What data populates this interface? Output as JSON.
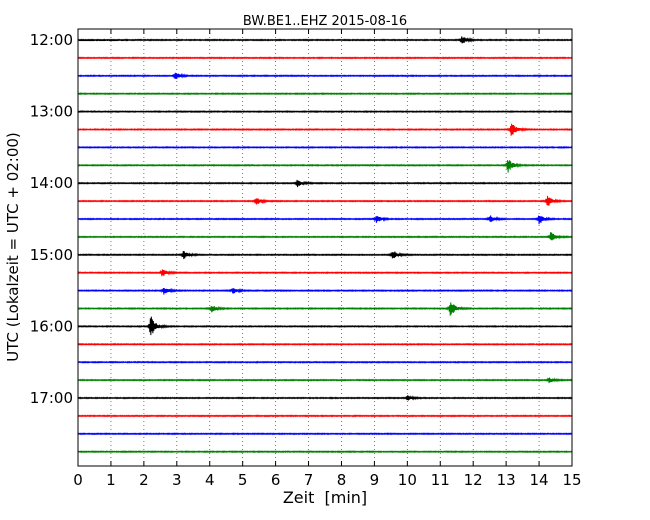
{
  "chart_data": {
    "type": "line",
    "title": "BW.BE1..EHZ 2015-08-16",
    "xlabel": "Zeit  [min]",
    "ylabel": "UTC (Lokalzeit = UTC + 02:00)",
    "xlim": [
      0,
      15
    ],
    "x_ticks": [
      "0",
      "1",
      "2",
      "3",
      "4",
      "5",
      "6",
      "7",
      "8",
      "9",
      "10",
      "11",
      "12",
      "13",
      "14",
      "15"
    ],
    "y_ticks": [
      {
        "label": "12:00",
        "trace": 0
      },
      {
        "label": "13:00",
        "trace": 4
      },
      {
        "label": "14:00",
        "trace": 8
      },
      {
        "label": "15:00",
        "trace": 12
      },
      {
        "label": "16:00",
        "trace": 16
      },
      {
        "label": "17:00",
        "trace": 20
      }
    ],
    "grid": "vertical dotted",
    "trace_interval_min": 15,
    "colors": [
      "#000000",
      "#ff0000",
      "#0000ff",
      "#008000"
    ],
    "traces": [
      {
        "start": "12:00",
        "color": "#000000",
        "events": [
          {
            "t": 11.65,
            "a": 0.55
          }
        ]
      },
      {
        "start": "12:15",
        "color": "#ff0000",
        "events": []
      },
      {
        "start": "12:30",
        "color": "#0000ff",
        "events": [
          {
            "t": 2.95,
            "a": 0.45
          }
        ]
      },
      {
        "start": "12:45",
        "color": "#008000",
        "events": []
      },
      {
        "start": "13:00",
        "color": "#000000",
        "events": []
      },
      {
        "start": "13:15",
        "color": "#ff0000",
        "events": [
          {
            "t": 13.15,
            "a": 1.0
          }
        ]
      },
      {
        "start": "13:30",
        "color": "#0000ff",
        "events": []
      },
      {
        "start": "13:45",
        "color": "#008000",
        "events": [
          {
            "t": 13.05,
            "a": 0.85
          }
        ]
      },
      {
        "start": "14:00",
        "color": "#000000",
        "events": [
          {
            "t": 6.65,
            "a": 0.45
          }
        ]
      },
      {
        "start": "14:15",
        "color": "#ff0000",
        "events": [
          {
            "t": 5.4,
            "a": 0.5
          },
          {
            "t": 14.25,
            "a": 0.7
          }
        ]
      },
      {
        "start": "14:30",
        "color": "#0000ff",
        "events": [
          {
            "t": 9.05,
            "a": 0.5
          },
          {
            "t": 12.5,
            "a": 0.45
          },
          {
            "t": 14.0,
            "a": 0.6
          }
        ]
      },
      {
        "start": "14:45",
        "color": "#008000",
        "events": [
          {
            "t": 14.35,
            "a": 0.6
          }
        ]
      },
      {
        "start": "15:00",
        "color": "#000000",
        "events": [
          {
            "t": 3.2,
            "a": 0.5
          },
          {
            "t": 9.55,
            "a": 0.55
          }
        ]
      },
      {
        "start": "15:15",
        "color": "#ff0000",
        "events": [
          {
            "t": 2.55,
            "a": 0.5
          }
        ]
      },
      {
        "start": "15:30",
        "color": "#0000ff",
        "events": [
          {
            "t": 2.6,
            "a": 0.45
          },
          {
            "t": 4.7,
            "a": 0.4
          }
        ]
      },
      {
        "start": "15:45",
        "color": "#008000",
        "events": [
          {
            "t": 4.05,
            "a": 0.45
          },
          {
            "t": 11.3,
            "a": 1.1
          }
        ]
      },
      {
        "start": "16:00",
        "color": "#000000",
        "events": [
          {
            "t": 2.2,
            "a": 1.3
          }
        ]
      },
      {
        "start": "16:15",
        "color": "#ff0000",
        "events": []
      },
      {
        "start": "16:30",
        "color": "#0000ff",
        "events": []
      },
      {
        "start": "16:45",
        "color": "#008000",
        "events": [
          {
            "t": 14.3,
            "a": 0.3
          }
        ]
      },
      {
        "start": "17:00",
        "color": "#000000",
        "events": [
          {
            "t": 10.0,
            "a": 0.3
          }
        ]
      },
      {
        "start": "17:15",
        "color": "#ff0000",
        "events": []
      },
      {
        "start": "17:30",
        "color": "#0000ff",
        "events": []
      },
      {
        "start": "17:45",
        "color": "#008000",
        "events": []
      }
    ]
  }
}
